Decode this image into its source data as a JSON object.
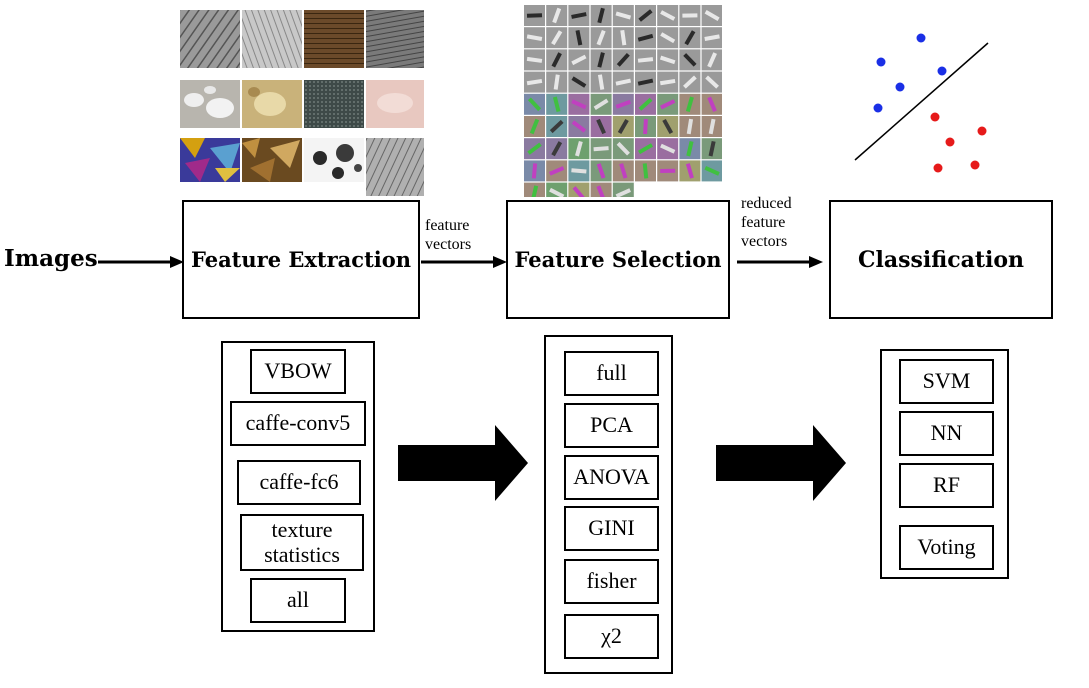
{
  "input": {
    "label": "Images"
  },
  "stages": [
    {
      "label": "Feature Extraction"
    },
    {
      "label": "Feature Selection"
    },
    {
      "label": "Classification"
    }
  ],
  "connectors": {
    "extraction_to_selection": [
      "feature",
      "vectors"
    ],
    "selection_to_classification": [
      "reduced",
      "feature",
      "vectors"
    ]
  },
  "options": {
    "feature_extraction": [
      "VBOW",
      "caffe-conv5",
      "caffe-fc6",
      "texture statistics",
      "all"
    ],
    "feature_selection": [
      "full",
      "PCA",
      "ANOVA",
      "GINI",
      "fisher",
      "χ2"
    ],
    "classification": [
      "SVM",
      "NN",
      "RF",
      "Voting"
    ]
  },
  "colors": {
    "class_a": "#1a2fe6",
    "class_b": "#e61a1a"
  },
  "illustrations": {
    "extraction": "micrograph-thumbnail-grid",
    "selection": "cnn-filter-grid",
    "classification": "scatter-with-separating-line"
  }
}
